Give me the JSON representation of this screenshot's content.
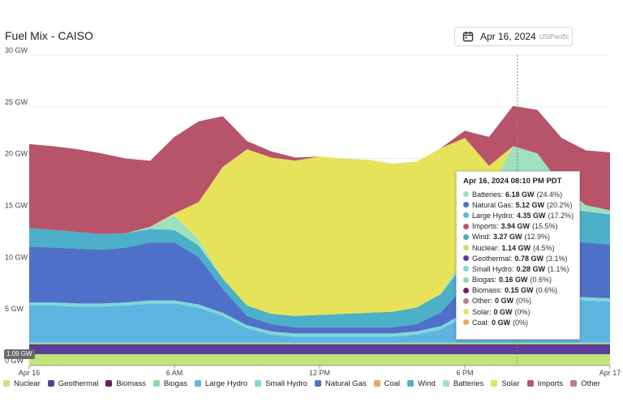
{
  "header": {
    "title": "Fuel Mix - CAISO",
    "date": "Apr 16, 2024",
    "timezone": "US/Pacific"
  },
  "marker_label": "1.09 GW",
  "tooltip": {
    "title": "Apr 16, 2024 08:10 PM PDT",
    "rows": [
      {
        "label": "Batteries:",
        "value": "6.18 GW",
        "pct": "(24.4%)",
        "color": "#9ee0c0"
      },
      {
        "label": "Natural Gas:",
        "value": "5.12 GW",
        "pct": "(20.2%)",
        "color": "#4f70c8"
      },
      {
        "label": "Large Hydro:",
        "value": "4.35 GW",
        "pct": "(17.2%)",
        "color": "#5fb5e2"
      },
      {
        "label": "Imports:",
        "value": "3.94 GW",
        "pct": "(15.5%)",
        "color": "#b8546a"
      },
      {
        "label": "Wind:",
        "value": "3.27 GW",
        "pct": "(12.9%)",
        "color": "#4bb0c8"
      },
      {
        "label": "Nuclear:",
        "value": "1.14 GW",
        "pct": "(4.5%)",
        "color": "#bfe57a"
      },
      {
        "label": "Geothermal:",
        "value": "0.78 GW",
        "pct": "(3.1%)",
        "color": "#5a3d9a"
      },
      {
        "label": "Small Hydro:",
        "value": "0.28 GW",
        "pct": "(1.1%)",
        "color": "#7ed8d8"
      },
      {
        "label": "Biogas:",
        "value": "0.16 GW",
        "pct": "(0.6%)",
        "color": "#8fdba6"
      },
      {
        "label": "Biomass:",
        "value": "0.15 GW",
        "pct": "(0.6%)",
        "color": "#6b1f5e"
      },
      {
        "label": "Other:",
        "value": "0 GW",
        "pct": "(0%)",
        "color": "#c07b8f"
      },
      {
        "label": "Solar:",
        "value": "0 GW",
        "pct": "(0%)",
        "color": "#e6e35a"
      },
      {
        "label": "Coal:",
        "value": "0 GW",
        "pct": "(0%)",
        "color": "#e8a65a"
      }
    ]
  },
  "legend": [
    {
      "label": "Nuclear",
      "color": "#bfe57a"
    },
    {
      "label": "Geothermal",
      "color": "#5a3d9a"
    },
    {
      "label": "Biomass",
      "color": "#6b1f5e"
    },
    {
      "label": "Biogas",
      "color": "#8fdba6"
    },
    {
      "label": "Large Hydro",
      "color": "#5fb5e2"
    },
    {
      "label": "Small Hydro",
      "color": "#7ed8d8"
    },
    {
      "label": "Natural Gas",
      "color": "#4f70c8"
    },
    {
      "label": "Coal",
      "color": "#e8a65a"
    },
    {
      "label": "Wind",
      "color": "#4bb0c8"
    },
    {
      "label": "Batteries",
      "color": "#9ee0c0"
    },
    {
      "label": "Solar",
      "color": "#e6e35a"
    },
    {
      "label": "Imports",
      "color": "#b8546a"
    },
    {
      "label": "Other",
      "color": "#c07b8f"
    }
  ],
  "chart_data": {
    "type": "area",
    "title": "Fuel Mix - CAISO",
    "stacked": true,
    "x_unit": "hour of Apr 16, 2024",
    "x": [
      0,
      1,
      2,
      3,
      4,
      5,
      6,
      7,
      8,
      9,
      10,
      11,
      12,
      13,
      14,
      15,
      16,
      17,
      18,
      19,
      20,
      21,
      22,
      23,
      24
    ],
    "x_tick_labels": [
      "Apr 16",
      "6 AM",
      "12 PM",
      "6 PM",
      "Apr 17"
    ],
    "x_tick_values": [
      0,
      6,
      12,
      18,
      24
    ],
    "ylim": [
      0,
      30
    ],
    "y_ticks": [
      "0 GW",
      "5 GW",
      "10 GW",
      "15 GW",
      "20 GW",
      "25 GW",
      "30 GW"
    ],
    "grid": true,
    "series": [
      {
        "name": "Nuclear",
        "color": "#bfe57a",
        "values": [
          1.1,
          1.1,
          1.1,
          1.1,
          1.1,
          1.1,
          1.1,
          1.1,
          1.1,
          1.1,
          1.1,
          1.1,
          1.1,
          1.1,
          1.1,
          1.1,
          1.1,
          1.1,
          1.1,
          1.1,
          1.1,
          1.1,
          1.1,
          1.1,
          1.1
        ]
      },
      {
        "name": "Geothermal",
        "color": "#5a3d9a",
        "values": [
          0.8,
          0.8,
          0.8,
          0.8,
          0.8,
          0.8,
          0.8,
          0.8,
          0.8,
          0.8,
          0.8,
          0.8,
          0.8,
          0.8,
          0.8,
          0.8,
          0.8,
          0.8,
          0.8,
          0.8,
          0.8,
          0.8,
          0.8,
          0.8,
          0.8
        ]
      },
      {
        "name": "Biomass",
        "color": "#6b1f5e",
        "values": [
          0.15,
          0.15,
          0.15,
          0.15,
          0.15,
          0.15,
          0.15,
          0.15,
          0.15,
          0.15,
          0.15,
          0.15,
          0.15,
          0.15,
          0.15,
          0.15,
          0.15,
          0.15,
          0.15,
          0.15,
          0.15,
          0.15,
          0.15,
          0.15,
          0.15
        ]
      },
      {
        "name": "Biogas",
        "color": "#8fdba6",
        "values": [
          0.15,
          0.15,
          0.15,
          0.15,
          0.15,
          0.15,
          0.15,
          0.15,
          0.15,
          0.15,
          0.15,
          0.15,
          0.15,
          0.15,
          0.15,
          0.15,
          0.15,
          0.15,
          0.15,
          0.15,
          0.15,
          0.15,
          0.15,
          0.15,
          0.15
        ]
      },
      {
        "name": "Large Hydro",
        "color": "#5fb5e2",
        "values": [
          3.6,
          3.6,
          3.5,
          3.5,
          3.6,
          3.8,
          3.8,
          3.4,
          2.6,
          1.4,
          0.8,
          0.6,
          0.6,
          0.6,
          0.6,
          0.6,
          0.8,
          1.3,
          2.6,
          3.9,
          4.4,
          4.3,
          4.2,
          4.1,
          4.0
        ]
      },
      {
        "name": "Small Hydro",
        "color": "#7ed8d8",
        "values": [
          0.3,
          0.3,
          0.3,
          0.3,
          0.3,
          0.3,
          0.3,
          0.3,
          0.3,
          0.3,
          0.3,
          0.3,
          0.3,
          0.3,
          0.3,
          0.3,
          0.3,
          0.3,
          0.3,
          0.3,
          0.3,
          0.3,
          0.3,
          0.3,
          0.3
        ]
      },
      {
        "name": "Natural Gas",
        "color": "#4f70c8",
        "values": [
          5.4,
          5.3,
          5.3,
          5.2,
          5.3,
          5.6,
          5.6,
          4.6,
          2.3,
          0.9,
          0.7,
          0.6,
          0.6,
          0.6,
          0.6,
          0.6,
          0.7,
          1.3,
          2.6,
          4.6,
          5.1,
          5.2,
          5.3,
          5.3,
          5.2
        ]
      },
      {
        "name": "Coal",
        "color": "#e8a65a",
        "values": [
          0,
          0,
          0,
          0,
          0,
          0,
          0,
          0,
          0,
          0,
          0,
          0,
          0,
          0,
          0,
          0,
          0,
          0,
          0,
          0,
          0,
          0,
          0,
          0,
          0
        ]
      },
      {
        "name": "Wind",
        "color": "#4bb0c8",
        "values": [
          1.8,
          1.7,
          1.6,
          1.5,
          1.4,
          1.3,
          1.2,
          1.1,
          1.0,
          1.0,
          1.0,
          1.1,
          1.2,
          1.3,
          1.4,
          1.5,
          1.6,
          1.8,
          2.2,
          2.8,
          3.2,
          3.3,
          3.2,
          3.0,
          2.9
        ]
      },
      {
        "name": "Batteries",
        "color": "#9ee0c0",
        "values": [
          0,
          0,
          0,
          0,
          0,
          0.2,
          1.4,
          0.6,
          0,
          0,
          0,
          0,
          0,
          0,
          0,
          0,
          0,
          0,
          0.6,
          3.0,
          6.0,
          5.2,
          2.2,
          0.6,
          0.4
        ]
      },
      {
        "name": "Solar",
        "color": "#e6e35a",
        "values": [
          0,
          0,
          0,
          0,
          0,
          0,
          0.2,
          3.6,
          10.8,
          15.1,
          15.1,
          15.0,
          15.3,
          15.0,
          14.8,
          14.3,
          14.1,
          14.1,
          11.5,
          2.5,
          0,
          0,
          0,
          0,
          0
        ]
      },
      {
        "name": "Imports",
        "color": "#b8546a",
        "values": [
          8.1,
          8.1,
          8.0,
          7.8,
          7.2,
          6.4,
          7.4,
          7.8,
          4.9,
          0.8,
          0.6,
          0.3,
          0,
          0,
          0,
          0,
          0,
          0,
          0.7,
          2.8,
          3.9,
          4.2,
          4.6,
          5.3,
          5.6
        ]
      },
      {
        "name": "Other",
        "color": "#c07b8f",
        "values": [
          0,
          0,
          0,
          0,
          0,
          0,
          0,
          0,
          0,
          0,
          0,
          0,
          0,
          0,
          0,
          0,
          0,
          0,
          0,
          0,
          0,
          0,
          0,
          0,
          0
        ]
      }
    ],
    "hover_x": 20.17
  }
}
